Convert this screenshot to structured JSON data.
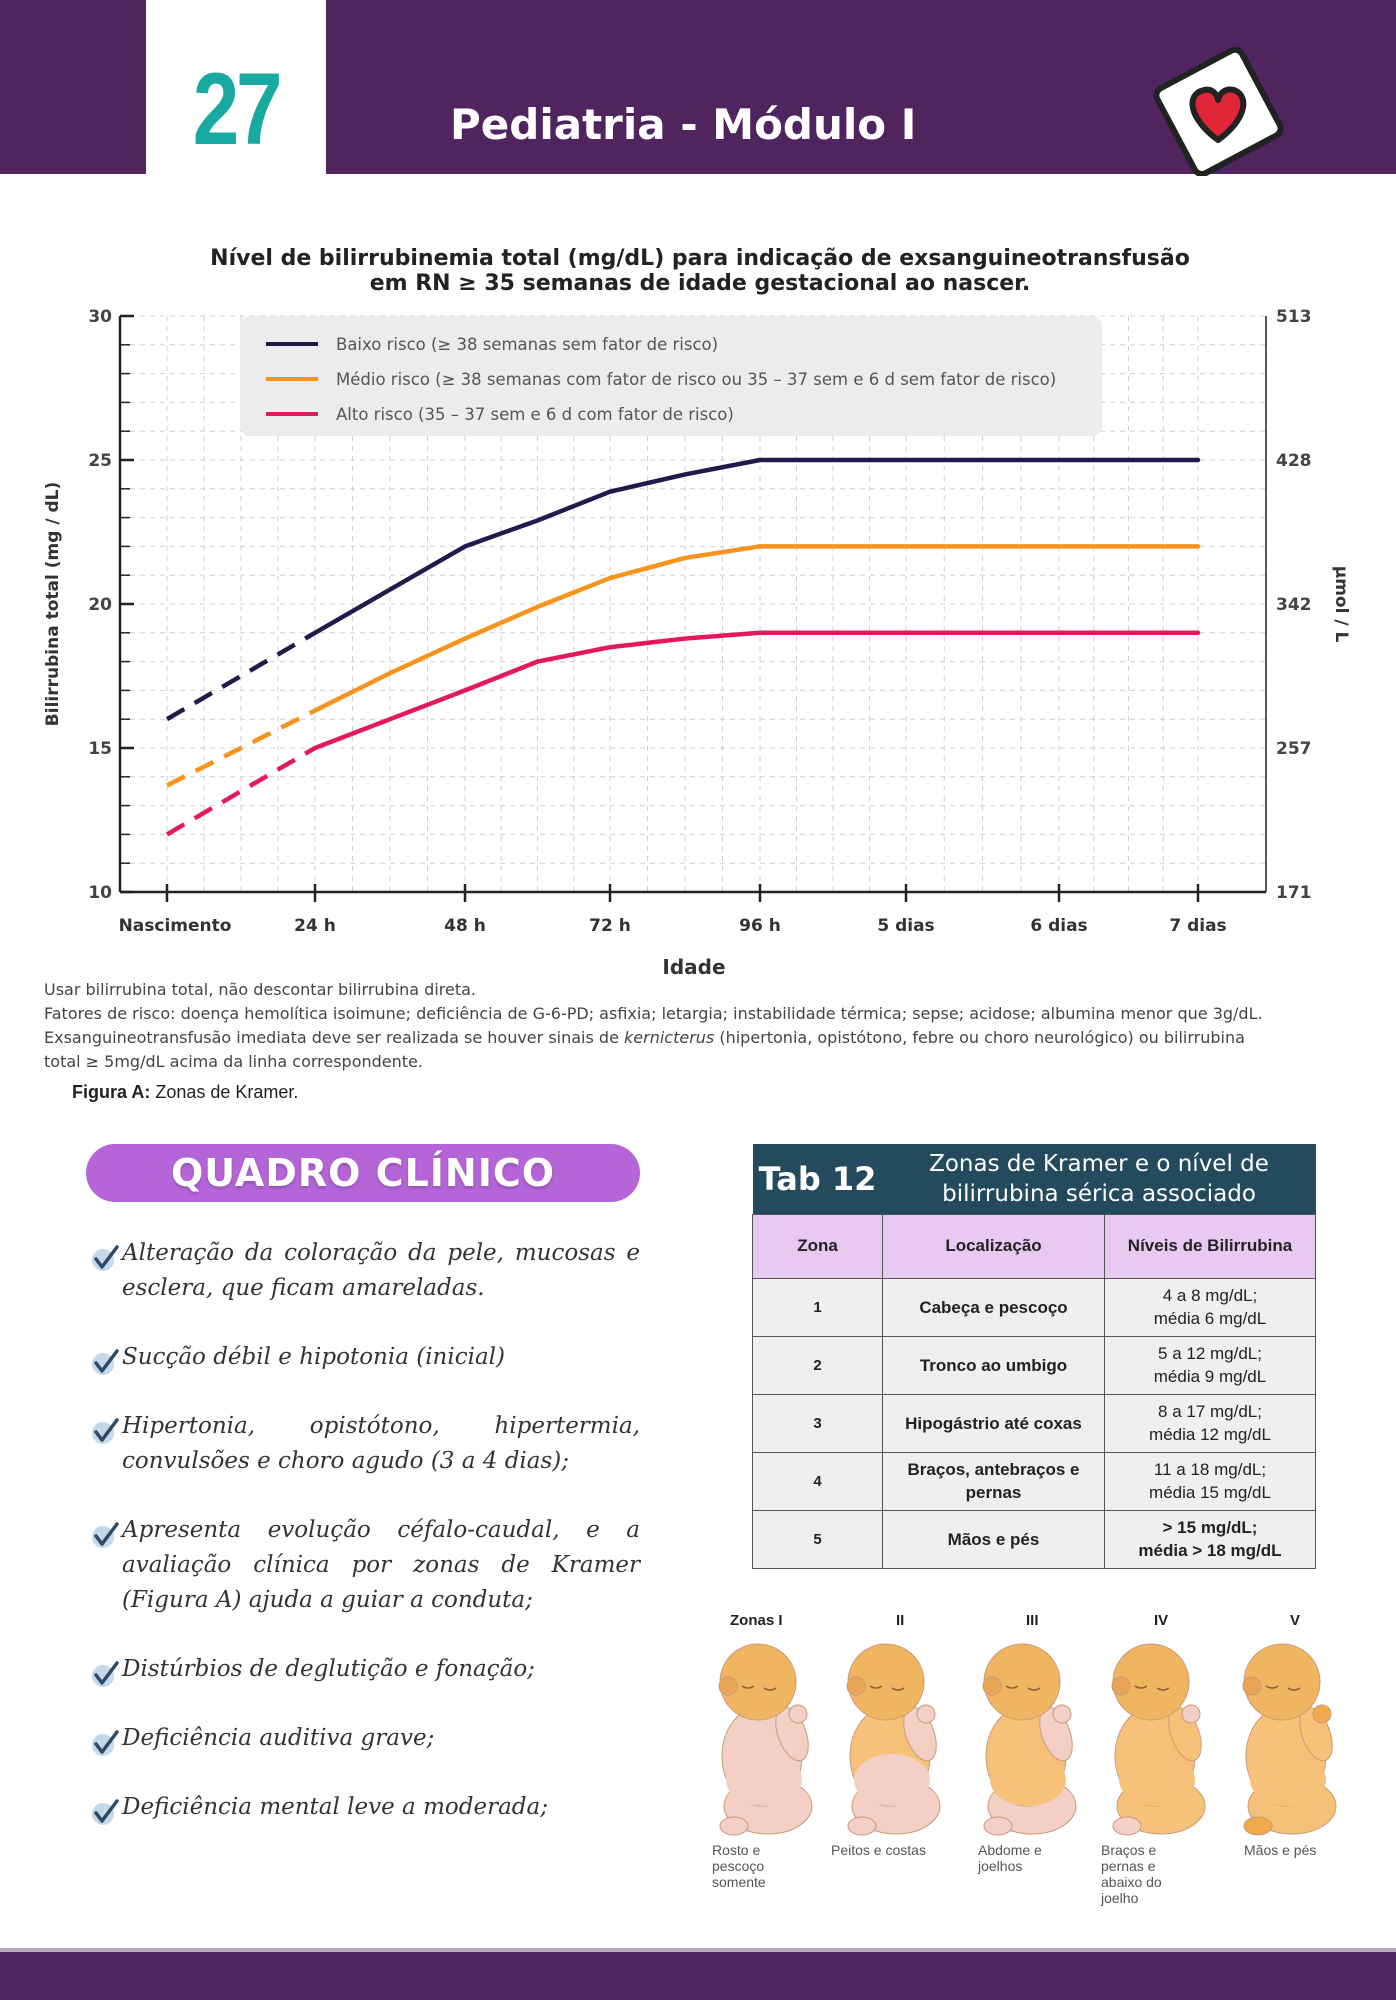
{
  "header": {
    "page_number": "27",
    "module_title": "Pediatria - Módulo I",
    "logo_icon": "heart-card-icon",
    "band_color": "#50245f",
    "number_color": "#18a9a0"
  },
  "chart_data": {
    "type": "line",
    "title_line1": "Nível de bilirrubinemia total (mg/dL) para indicação de exsanguineotransfusão",
    "title_line2": "em RN ≥ 35 semanas de idade gestacional ao nascer.",
    "xlabel": "Idade",
    "ylabel": "Bilirrubina total (mg / dL)",
    "y2label": "µmol / L",
    "categories": [
      "Nascimento",
      "24 h",
      "48 h",
      "72 h",
      "96 h",
      "5 dias",
      "6 dias",
      "7 dias"
    ],
    "ylim": [
      10,
      30
    ],
    "yticks": [
      "10",
      "15",
      "20",
      "25",
      "30"
    ],
    "y2ticks": [
      "171",
      "257",
      "342",
      "428",
      "513"
    ],
    "grid": true,
    "legend_placement": "top",
    "dashed_segment": "Nascimento to 24 h",
    "series": [
      {
        "name": "Baixo risco (≥ 38 semanas sem fator de risco)",
        "color": "#1f1c4b",
        "x": [
          0,
          0.5,
          1,
          1.5,
          2,
          2.5,
          3,
          3.5,
          4,
          5,
          6,
          7
        ],
        "values": [
          16,
          17.5,
          19,
          20.5,
          22,
          22.9,
          23.9,
          24.5,
          25,
          25,
          25,
          25
        ]
      },
      {
        "name": "Médio risco (≥ 38 semanas com fator de risco ou 35 – 37 sem e 6 d sem fator de risco)",
        "color": "#f7941d",
        "x": [
          0,
          0.5,
          1,
          1.5,
          2,
          2.5,
          3,
          3.5,
          4,
          5,
          6,
          7
        ],
        "values": [
          13.7,
          15,
          16.3,
          17.6,
          18.8,
          19.9,
          20.9,
          21.6,
          22,
          22,
          22,
          22
        ]
      },
      {
        "name": "Alto risco (35 – 37 sem e 6 d com fator de risco)",
        "color": "#e4185c",
        "x": [
          0,
          0.5,
          1,
          1.5,
          2,
          2.5,
          3,
          3.5,
          4,
          5,
          6,
          7
        ],
        "values": [
          12,
          13.5,
          15,
          16,
          17,
          18,
          18.5,
          18.8,
          19,
          19,
          19,
          19
        ]
      }
    ]
  },
  "notes": {
    "line1": "Usar bilirrubina total, não descontar bilirrubina direta.",
    "line2": "Fatores de risco: doença hemolítica isoimune; deficiência de G-6-PD; asfixia; letargia; instabilidade térmica; sepse; acidose; albumina menor que 3g/dL.",
    "line3_a": "Exsanguineotransfusão imediata deve ser realizada se houver sinais de ",
    "line3_em": "kernicterus",
    "line3_b": " (hipertonia, opistótono, febre ou choro neurológico) ou bilirrubina",
    "line4": "total ≥ 5mg/dL acima da linha correspondente."
  },
  "figure_caption": {
    "label": "Figura A:",
    "text": "Zonas de Kramer."
  },
  "quadro_clinico": {
    "title": "QUADRO CLÍNICO",
    "items": [
      "Alteração da coloração da pele, mucosas e esclera, que ficam amareladas.",
      "Sucção débil e hipotonia (inicial)",
      "Hipertonia, opistótono, hipertermia, convulsões e choro agudo (3 a 4 dias);",
      "Apresenta evolução céfalo-caudal, e a avaliação clínica por zonas de Kramer (Figura A) ajuda a guiar a conduta;",
      "Distúrbios de deglutição e fonação;",
      "Deficiência auditiva grave;",
      "Deficiência mental leve a moderada;"
    ]
  },
  "table": {
    "label": "Tab 12",
    "title": "Zonas de Kramer e o nível de bilirrubina sérica associado",
    "headers": [
      "Zona",
      "Localização",
      "Níveis de Bilirrubina"
    ],
    "rows": [
      {
        "zona": "1",
        "loc": "Cabeça e pescoço",
        "lvl1": "4 a 8 mg/dL;",
        "lvl2": "média 6 mg/dL"
      },
      {
        "zona": "2",
        "loc": "Tronco ao umbigo",
        "lvl1": "5 a 12 mg/dL;",
        "lvl2": "média 9 mg/dL"
      },
      {
        "zona": "3",
        "loc": "Hipogástrio até coxas",
        "lvl1": "8 a 17 mg/dL;",
        "lvl2": "média 12 mg/dL"
      },
      {
        "zona": "4",
        "loc": "Braços, antebraços e pernas",
        "lvl1": "11 a 18 mg/dL;",
        "lvl2": "média 15 mg/dL"
      },
      {
        "zona": "5",
        "loc": "Mãos e pés",
        "lvl1": "> 15 mg/dL;",
        "lvl2": "média > 18 mg/dL"
      }
    ]
  },
  "zones_figure": {
    "labels": [
      "Zonas I",
      "II",
      "III",
      "IV",
      "V"
    ],
    "captions": [
      [
        "Rosto e",
        "pescoço",
        "somente"
      ],
      [
        "Peitos e costas"
      ],
      [
        "Abdome e",
        "joelhos"
      ],
      [
        "Braços e",
        "pernas e",
        "abaixo do",
        "joelho"
      ],
      [
        "Mãos e pés"
      ]
    ]
  }
}
